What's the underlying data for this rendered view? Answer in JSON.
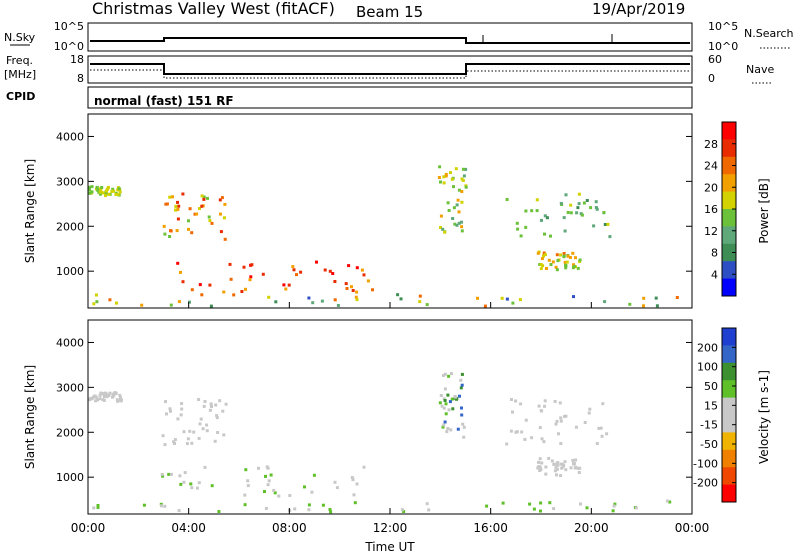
{
  "header": {
    "station": "Christmas Valley West (fitACF)",
    "beam": "Beam 15",
    "date": "19/Apr/2019"
  },
  "labels": {
    "nsky": "N.Sky",
    "nsearch": "N.Search",
    "freq_line1": "Freq.",
    "freq_line2": "[MHz]",
    "nave": "Nave",
    "cpid": "CPID",
    "mode": "normal (fast) 151 RF"
  },
  "noise_axis": {
    "left_ticks": [
      "10^5",
      "10^0"
    ],
    "right_ticks": [
      "10^5",
      "10^0"
    ]
  },
  "freq_axis": {
    "left_ticks": [
      "18",
      "8"
    ],
    "right_ticks": [
      "60",
      "0"
    ]
  },
  "colors": {
    "power_scale": [
      "#0000ff",
      "#2e4fc4",
      "#3e8d55",
      "#5ea87a",
      "#6bc23a",
      "#d2d200",
      "#f2a000",
      "#f06800",
      "#e82c00",
      "#ff0000"
    ],
    "velocity_scale": [
      "#1f3fd0",
      "#3466c8",
      "#3d9030",
      "#5fc02a",
      "#c8c8c8",
      "#c8c8c8",
      "#f0b400",
      "#f08000",
      "#f04800",
      "#ff0000"
    ]
  },
  "chart_data": [
    {
      "type": "heatmap",
      "title": "Power",
      "ylabel": "Slant Range [km]",
      "ylim": [
        180,
        4500
      ],
      "y_ticks": [
        "4000",
        "3000",
        "2000",
        "1000"
      ],
      "y_tick_values": [
        4000,
        3000,
        2000,
        1000
      ],
      "colorbar": {
        "label": "Power [dB]",
        "ticks": [
          "28",
          "24",
          "20",
          "16",
          "12",
          "8",
          "4"
        ],
        "range": [
          0,
          30
        ]
      },
      "scatter_regions": [
        {
          "t": [
            0.0,
            1.3
          ],
          "r": [
            2650,
            2850
          ],
          "v": [
            12,
            18
          ]
        },
        {
          "t": [
            2.9,
            5.5
          ],
          "r": [
            1650,
            2700
          ],
          "v": [
            14,
            26
          ]
        },
        {
          "t": [
            2.6,
            11.3
          ],
          "r": [
            500,
            1200
          ],
          "v": [
            18,
            30
          ]
        },
        {
          "t": [
            13.9,
            15.0
          ],
          "r": [
            1800,
            3300
          ],
          "v": [
            10,
            20
          ]
        },
        {
          "t": [
            16.5,
            20.7
          ],
          "r": [
            1700,
            2700
          ],
          "v": [
            8,
            18
          ]
        },
        {
          "t": [
            17.8,
            19.5
          ],
          "r": [
            1000,
            1400
          ],
          "v": [
            12,
            22
          ]
        },
        {
          "t": [
            0.0,
            24.0
          ],
          "r": [
            180,
            450
          ],
          "v": [
            4,
            24
          ]
        }
      ]
    },
    {
      "type": "heatmap",
      "title": "Velocity",
      "xlabel": "Time UT",
      "ylabel": "Slant Range [km]",
      "xlim": [
        0,
        24
      ],
      "x_ticks": [
        "00:00",
        "04:00",
        "08:00",
        "12:00",
        "16:00",
        "20:00",
        "00:00"
      ],
      "ylim": [
        180,
        4500
      ],
      "y_ticks": [
        "4000",
        "3000",
        "2000",
        "1000"
      ],
      "y_tick_values": [
        4000,
        3000,
        2000,
        1000
      ],
      "colorbar": {
        "label": "Velocity [m s-1]",
        "ticks": [
          "200",
          "100",
          "50",
          "15",
          "-15",
          "-50",
          "-100",
          "-200"
        ],
        "range": [
          -250,
          250
        ]
      },
      "scatter_regions": [
        {
          "t": [
            0.0,
            1.3
          ],
          "r": [
            2650,
            2850
          ],
          "v": [
            -10,
            10
          ]
        },
        {
          "t": [
            2.9,
            5.5
          ],
          "r": [
            1650,
            2700
          ],
          "v": [
            -10,
            10
          ]
        },
        {
          "t": [
            2.6,
            11.3
          ],
          "r": [
            500,
            1200
          ],
          "v": [
            20,
            60
          ]
        },
        {
          "t": [
            13.9,
            15.0
          ],
          "r": [
            1800,
            3300
          ],
          "v": [
            -10,
            200
          ]
        },
        {
          "t": [
            16.5,
            20.7
          ],
          "r": [
            1700,
            2700
          ],
          "v": [
            -10,
            10
          ]
        },
        {
          "t": [
            17.8,
            19.5
          ],
          "r": [
            1000,
            1400
          ],
          "v": [
            -10,
            10
          ]
        },
        {
          "t": [
            0.0,
            24.0
          ],
          "r": [
            180,
            450
          ],
          "v": [
            20,
            80
          ]
        }
      ]
    }
  ]
}
